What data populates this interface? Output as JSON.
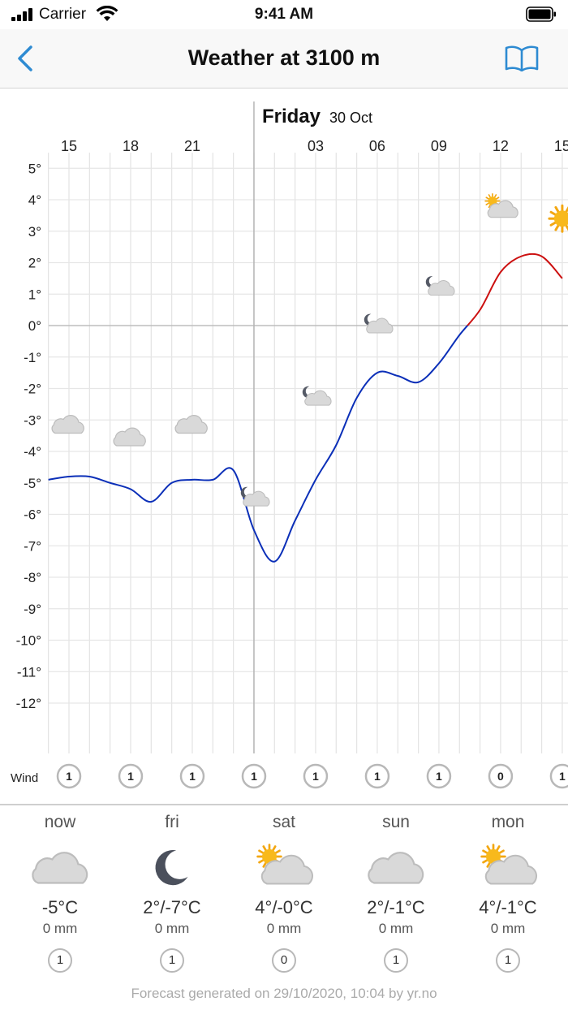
{
  "status_bar": {
    "carrier": "Carrier",
    "time": "9:41 AM"
  },
  "nav": {
    "title": "Weather at 3100 m",
    "back_icon": "chevron-left-icon",
    "right_icon": "book-icon",
    "accent_color": "#2e8bd2"
  },
  "chart_data": {
    "type": "line",
    "day_header": {
      "name": "Friday",
      "date": "30 Oct"
    },
    "x_tick_labels": [
      "15",
      "18",
      "21",
      "03",
      "06",
      "09",
      "12",
      "15"
    ],
    "x_unit": "hour",
    "y_tick_labels": [
      "5°",
      "4°",
      "3°",
      "2°",
      "1°",
      "0°",
      "-1°",
      "-2°",
      "-3°",
      "-4°",
      "-5°",
      "-6°",
      "-7°",
      "-8°",
      "-9°",
      "-10°",
      "-11°",
      "-12°"
    ],
    "ylim": [
      -12,
      5
    ],
    "grid": true,
    "series": [
      {
        "below_zero_color": "#0b2fb8",
        "above_zero_color": "#cc1010",
        "x": [
          14,
          15,
          16,
          17,
          18,
          19,
          20,
          21,
          22,
          23,
          24,
          25,
          26,
          27,
          28,
          29,
          30,
          31,
          32,
          33,
          34,
          35,
          36,
          37,
          38,
          39
        ],
        "values": [
          -4.9,
          -4.8,
          -4.8,
          -5.0,
          -5.2,
          -5.6,
          -5.0,
          -4.9,
          -4.9,
          -4.6,
          -6.5,
          -7.5,
          -6.2,
          -4.9,
          -3.8,
          -2.3,
          -1.5,
          -1.6,
          -1.8,
          -1.2,
          -0.3,
          0.5,
          1.7,
          2.2,
          2.2,
          1.5
        ]
      }
    ],
    "weather_symbols": [
      {
        "x": 15,
        "y": -3.2,
        "icon": "cloud-icon"
      },
      {
        "x": 18,
        "y": -3.6,
        "icon": "cloud-icon"
      },
      {
        "x": 21,
        "y": -3.2,
        "icon": "cloud-icon"
      },
      {
        "x": 24,
        "y": -5.5,
        "icon": "moon-cloud-icon"
      },
      {
        "x": 27,
        "y": -2.3,
        "icon": "moon-cloud-icon"
      },
      {
        "x": 30,
        "y": -0.0,
        "icon": "moon-cloud-icon"
      },
      {
        "x": 33,
        "y": 1.2,
        "icon": "moon-cloud-icon"
      },
      {
        "x": 36,
        "y": 3.7,
        "icon": "sun-cloud-icon"
      },
      {
        "x": 39,
        "y": 3.4,
        "icon": "sun-icon"
      }
    ],
    "wind_label": "Wind",
    "wind": [
      {
        "x": 15,
        "value": "1"
      },
      {
        "x": 18,
        "value": "1"
      },
      {
        "x": 21,
        "value": "1"
      },
      {
        "x": 24,
        "value": "1"
      },
      {
        "x": 27,
        "value": "1"
      },
      {
        "x": 30,
        "value": "1"
      },
      {
        "x": 33,
        "value": "1"
      },
      {
        "x": 36,
        "value": "0"
      },
      {
        "x": 39,
        "value": "1"
      }
    ]
  },
  "days": [
    {
      "name": "now",
      "icon": "cloud-icon",
      "temp": "-5°C",
      "precip": "0 mm",
      "wind": "1"
    },
    {
      "name": "fri",
      "icon": "moon-icon",
      "temp": "2°/-7°C",
      "precip": "0 mm",
      "wind": "1"
    },
    {
      "name": "sat",
      "icon": "sun-cloud-icon",
      "temp": "4°/-0°C",
      "precip": "0 mm",
      "wind": "0"
    },
    {
      "name": "sun",
      "icon": "cloud-icon",
      "temp": "2°/-1°C",
      "precip": "0 mm",
      "wind": "1"
    },
    {
      "name": "mon",
      "icon": "sun-cloud-icon",
      "temp": "4°/-1°C",
      "precip": "0 mm",
      "wind": "1"
    }
  ],
  "footer": "Forecast generated on 29/10/2020, 10:04 by yr.no"
}
